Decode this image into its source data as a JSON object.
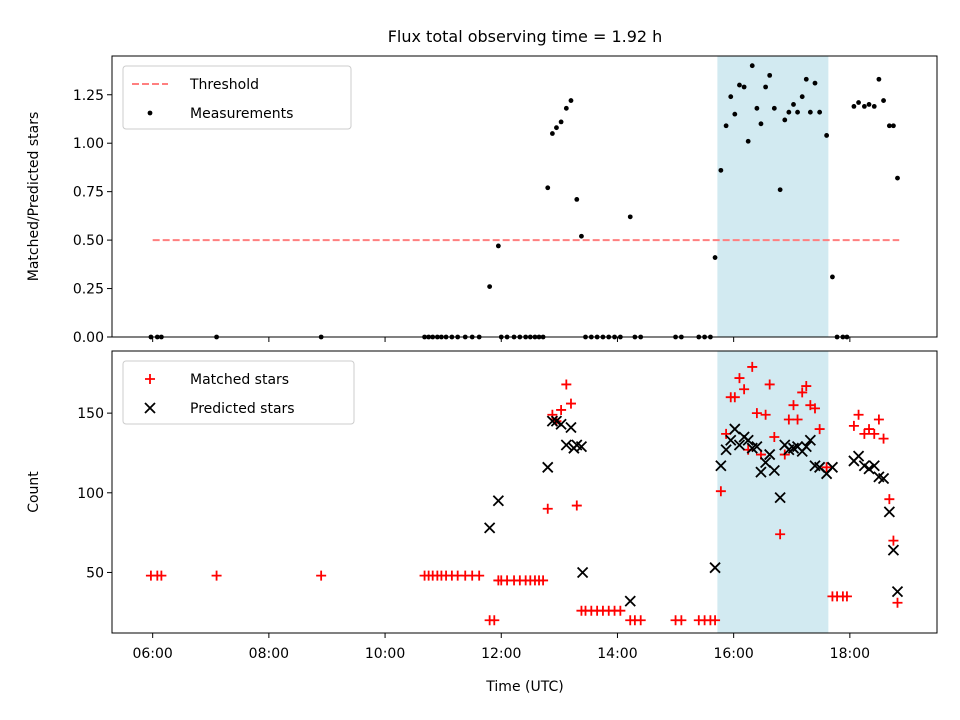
{
  "figure": {
    "title": "Flux total observing time = 1.92 h",
    "xlabel": "Time (UTC)",
    "x_tick_labels": [
      "06:00",
      "08:00",
      "10:00",
      "12:00",
      "14:00",
      "16:00",
      "18:00"
    ]
  },
  "colors": {
    "threshold": "#ff7f7f",
    "measurements": "#000000",
    "matched": "#ff0000",
    "predicted": "#000000",
    "highlight": "#add8e6"
  },
  "chart_data": [
    {
      "type": "scatter",
      "panel": "top",
      "title": "Flux total observing time = 1.92 h",
      "xlabel": "",
      "ylabel": "Matched/Predicted stars",
      "x_unit": "hours UTC",
      "xlim": [
        5.3,
        19.5
      ],
      "ylim": [
        0,
        1.45
      ],
      "yticks": [
        0.0,
        0.25,
        0.5,
        0.75,
        1.0,
        1.25
      ],
      "ytick_labels": [
        "0.00",
        "0.25",
        "0.50",
        "0.75",
        "1.00",
        "1.25"
      ],
      "grid": false,
      "legend": {
        "placement": "top-left",
        "entries": [
          "Threshold",
          "Measurements"
        ]
      },
      "highlight_span": [
        15.72,
        17.63
      ],
      "threshold": {
        "name": "Threshold",
        "y": 0.5,
        "x": [
          6.0,
          18.85
        ]
      },
      "series": [
        {
          "name": "Measurements",
          "points": [
            [
              5.97,
              0
            ],
            [
              6.08,
              0
            ],
            [
              6.15,
              0
            ],
            [
              7.1,
              0
            ],
            [
              8.9,
              0
            ],
            [
              10.68,
              0
            ],
            [
              10.75,
              0
            ],
            [
              10.82,
              0
            ],
            [
              10.9,
              0
            ],
            [
              10.97,
              0
            ],
            [
              11.05,
              0
            ],
            [
              11.15,
              0
            ],
            [
              11.25,
              0
            ],
            [
              11.38,
              0
            ],
            [
              11.5,
              0
            ],
            [
              11.62,
              0
            ],
            [
              11.8,
              0.26
            ],
            [
              11.95,
              0.47
            ],
            [
              12.0,
              0
            ],
            [
              12.1,
              0
            ],
            [
              12.22,
              0
            ],
            [
              12.32,
              0
            ],
            [
              12.42,
              0
            ],
            [
              12.5,
              0
            ],
            [
              12.58,
              0
            ],
            [
              12.65,
              0
            ],
            [
              12.72,
              0
            ],
            [
              12.8,
              0.77
            ],
            [
              12.88,
              1.05
            ],
            [
              12.95,
              1.08
            ],
            [
              13.03,
              1.11
            ],
            [
              13.12,
              1.18
            ],
            [
              13.2,
              1.22
            ],
            [
              13.3,
              0.71
            ],
            [
              13.38,
              0.52
            ],
            [
              13.45,
              0
            ],
            [
              13.55,
              0
            ],
            [
              13.65,
              0
            ],
            [
              13.75,
              0
            ],
            [
              13.85,
              0
            ],
            [
              13.95,
              0
            ],
            [
              14.05,
              0
            ],
            [
              14.22,
              0.62
            ],
            [
              14.3,
              0
            ],
            [
              14.4,
              0
            ],
            [
              15.0,
              0
            ],
            [
              15.1,
              0
            ],
            [
              15.4,
              0
            ],
            [
              15.5,
              0
            ],
            [
              15.6,
              0
            ],
            [
              15.68,
              0.41
            ],
            [
              15.78,
              0.86
            ],
            [
              15.87,
              1.09
            ],
            [
              15.95,
              1.24
            ],
            [
              16.02,
              1.15
            ],
            [
              16.1,
              1.3
            ],
            [
              16.18,
              1.29
            ],
            [
              16.25,
              1.01
            ],
            [
              16.32,
              1.4
            ],
            [
              16.4,
              1.18
            ],
            [
              16.47,
              1.1
            ],
            [
              16.55,
              1.29
            ],
            [
              16.62,
              1.35
            ],
            [
              16.7,
              1.18
            ],
            [
              16.8,
              0.76
            ],
            [
              16.88,
              1.12
            ],
            [
              16.95,
              1.16
            ],
            [
              17.03,
              1.2
            ],
            [
              17.1,
              1.16
            ],
            [
              17.18,
              1.24
            ],
            [
              17.25,
              1.33
            ],
            [
              17.32,
              1.16
            ],
            [
              17.4,
              1.31
            ],
            [
              17.48,
              1.16
            ],
            [
              17.6,
              1.04
            ],
            [
              17.7,
              0.31
            ],
            [
              17.78,
              0
            ],
            [
              17.88,
              0
            ],
            [
              17.95,
              0
            ],
            [
              18.07,
              1.19
            ],
            [
              18.15,
              1.21
            ],
            [
              18.25,
              1.19
            ],
            [
              18.33,
              1.2
            ],
            [
              18.42,
              1.19
            ],
            [
              18.5,
              1.33
            ],
            [
              18.58,
              1.22
            ],
            [
              18.68,
              1.09
            ],
            [
              18.75,
              1.09
            ],
            [
              18.82,
              0.82
            ]
          ]
        }
      ]
    },
    {
      "type": "scatter",
      "panel": "bottom",
      "title": "",
      "xlabel": "Time (UTC)",
      "ylabel": "Count",
      "x_unit": "hours UTC",
      "xlim": [
        5.3,
        19.5
      ],
      "ylim": [
        12,
        189
      ],
      "yticks": [
        50,
        100,
        150
      ],
      "ytick_labels": [
        "50",
        "100",
        "150"
      ],
      "xticks": [
        6,
        8,
        10,
        12,
        14,
        16,
        18
      ],
      "grid": false,
      "legend": {
        "placement": "top-left",
        "entries": [
          "Matched stars",
          "Predicted stars"
        ]
      },
      "highlight_span": [
        15.72,
        17.63
      ],
      "series": [
        {
          "name": "Matched stars",
          "marker": "plus",
          "points": [
            [
              5.97,
              48
            ],
            [
              6.08,
              48
            ],
            [
              6.15,
              48
            ],
            [
              7.1,
              48
            ],
            [
              8.9,
              48
            ],
            [
              10.68,
              48
            ],
            [
              10.75,
              48
            ],
            [
              10.82,
              48
            ],
            [
              10.9,
              48
            ],
            [
              10.97,
              48
            ],
            [
              11.05,
              48
            ],
            [
              11.15,
              48
            ],
            [
              11.25,
              48
            ],
            [
              11.38,
              48
            ],
            [
              11.5,
              48
            ],
            [
              11.62,
              48
            ],
            [
              11.8,
              20
            ],
            [
              11.88,
              20
            ],
            [
              11.95,
              45
            ],
            [
              12.0,
              45
            ],
            [
              12.1,
              45
            ],
            [
              12.22,
              45
            ],
            [
              12.32,
              45
            ],
            [
              12.42,
              45
            ],
            [
              12.5,
              45
            ],
            [
              12.58,
              45
            ],
            [
              12.65,
              45
            ],
            [
              12.72,
              45
            ],
            [
              12.8,
              90
            ],
            [
              12.88,
              149
            ],
            [
              12.95,
              145
            ],
            [
              13.03,
              152
            ],
            [
              13.12,
              168
            ],
            [
              13.2,
              156
            ],
            [
              13.3,
              92
            ],
            [
              13.38,
              26
            ],
            [
              13.45,
              26
            ],
            [
              13.55,
              26
            ],
            [
              13.65,
              26
            ],
            [
              13.75,
              26
            ],
            [
              13.85,
              26
            ],
            [
              13.95,
              26
            ],
            [
              14.05,
              26
            ],
            [
              14.22,
              20
            ],
            [
              14.3,
              20
            ],
            [
              14.4,
              20
            ],
            [
              15.0,
              20
            ],
            [
              15.1,
              20
            ],
            [
              15.4,
              20
            ],
            [
              15.5,
              20
            ],
            [
              15.6,
              20
            ],
            [
              15.68,
              20
            ],
            [
              15.78,
              101
            ],
            [
              15.87,
              137
            ],
            [
              15.95,
              160
            ],
            [
              16.02,
              160
            ],
            [
              16.1,
              172
            ],
            [
              16.18,
              165
            ],
            [
              16.25,
              127
            ],
            [
              16.32,
              179
            ],
            [
              16.4,
              150
            ],
            [
              16.47,
              124
            ],
            [
              16.55,
              149
            ],
            [
              16.62,
              168
            ],
            [
              16.7,
              135
            ],
            [
              16.8,
              74
            ],
            [
              16.88,
              124
            ],
            [
              16.95,
              146
            ],
            [
              17.03,
              155
            ],
            [
              17.1,
              146
            ],
            [
              17.18,
              163
            ],
            [
              17.25,
              167
            ],
            [
              17.32,
              155
            ],
            [
              17.4,
              153
            ],
            [
              17.48,
              140
            ],
            [
              17.6,
              116
            ],
            [
              17.7,
              35
            ],
            [
              17.78,
              35
            ],
            [
              17.88,
              35
            ],
            [
              17.95,
              35
            ],
            [
              18.07,
              142
            ],
            [
              18.15,
              149
            ],
            [
              18.25,
              137
            ],
            [
              18.33,
              140
            ],
            [
              18.42,
              137
            ],
            [
              18.5,
              146
            ],
            [
              18.58,
              134
            ],
            [
              18.68,
              96
            ],
            [
              18.75,
              70
            ],
            [
              18.82,
              31
            ]
          ]
        },
        {
          "name": "Predicted stars",
          "marker": "x",
          "points": [
            [
              11.8,
              78
            ],
            [
              11.95,
              95
            ],
            [
              12.8,
              116
            ],
            [
              12.88,
              145
            ],
            [
              12.95,
              145
            ],
            [
              13.03,
              143
            ],
            [
              13.12,
              130
            ],
            [
              13.2,
              141
            ],
            [
              13.25,
              128
            ],
            [
              13.3,
              130
            ],
            [
              13.38,
              129
            ],
            [
              13.4,
              50
            ],
            [
              14.22,
              32
            ],
            [
              15.68,
              53
            ],
            [
              15.78,
              117
            ],
            [
              15.87,
              127
            ],
            [
              15.95,
              133
            ],
            [
              16.02,
              140
            ],
            [
              16.1,
              130
            ],
            [
              16.18,
              135
            ],
            [
              16.25,
              133
            ],
            [
              16.32,
              128
            ],
            [
              16.4,
              129
            ],
            [
              16.47,
              113
            ],
            [
              16.55,
              119
            ],
            [
              16.62,
              124
            ],
            [
              16.7,
              114
            ],
            [
              16.8,
              97
            ],
            [
              16.88,
              130
            ],
            [
              16.95,
              127
            ],
            [
              17.03,
              128
            ],
            [
              17.1,
              129
            ],
            [
              17.18,
              126
            ],
            [
              17.25,
              129
            ],
            [
              17.32,
              133
            ],
            [
              17.4,
              117
            ],
            [
              17.48,
              116
            ],
            [
              17.6,
              112
            ],
            [
              17.7,
              116
            ],
            [
              18.07,
              120
            ],
            [
              18.15,
              123
            ],
            [
              18.25,
              117
            ],
            [
              18.33,
              115
            ],
            [
              18.42,
              117
            ],
            [
              18.5,
              110
            ],
            [
              18.58,
              109
            ],
            [
              18.68,
              88
            ],
            [
              18.75,
              64
            ],
            [
              18.82,
              38
            ]
          ]
        }
      ]
    }
  ]
}
